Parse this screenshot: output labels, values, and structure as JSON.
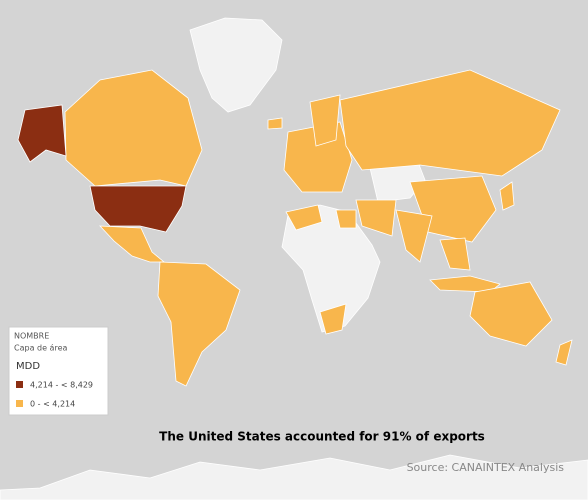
{
  "map": {
    "legend": {
      "title": "NOMBRE",
      "subtitle": "Capa de área",
      "measure": "MDD",
      "entries": [
        {
          "label": "4,214 - < 8,429",
          "color": "#8b2e12"
        },
        {
          "label": "0 - < 4,214",
          "color": "#f8b64c"
        }
      ]
    },
    "annotation": "The United States accounted for 91% of exports",
    "source": "Source: CANAINTEX Analysis"
  }
}
